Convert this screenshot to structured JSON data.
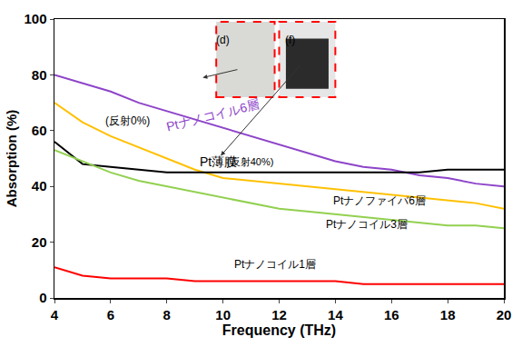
{
  "chart_data": {
    "type": "line",
    "xlabel": "Frequency (THz)",
    "ylabel": "Absorption (%)",
    "x": [
      4,
      5,
      6,
      7,
      8,
      9,
      10,
      11,
      12,
      13,
      14,
      15,
      16,
      17,
      18,
      19,
      20
    ],
    "xlim": [
      4,
      20
    ],
    "xticks": [
      4,
      6,
      8,
      10,
      12,
      14,
      16,
      18,
      20
    ],
    "ylim": [
      0,
      100
    ],
    "yticks": [
      0,
      20,
      40,
      60,
      80,
      100
    ],
    "grid": false,
    "series": [
      {
        "name": "Ptナノコイル6層",
        "color": "#8e44c9",
        "values": [
          80,
          77,
          74,
          70,
          67,
          64,
          61,
          58,
          55,
          52,
          49,
          47,
          46,
          44,
          43,
          41,
          40
        ]
      },
      {
        "name": "Ptナノファイバ6層",
        "color": "#ffc000",
        "values": [
          70,
          63,
          58,
          54,
          50,
          46,
          43,
          42,
          41,
          40,
          39,
          38,
          37,
          36,
          35,
          34,
          32
        ]
      },
      {
        "name": "Pt薄膜",
        "color": "#000000",
        "values": [
          56,
          48,
          47,
          46,
          45,
          45,
          45,
          45,
          45,
          45,
          45,
          45,
          45,
          45,
          46,
          46,
          46
        ]
      },
      {
        "name": "Ptナノコイル3層",
        "color": "#92d050",
        "values": [
          53,
          49,
          45,
          42,
          40,
          38,
          36,
          34,
          32,
          31,
          30,
          29,
          28,
          27,
          26,
          26,
          25
        ]
      },
      {
        "name": "Ptナノコイル1層",
        "color": "#ff0000",
        "values": [
          11,
          8,
          7,
          7,
          7,
          6,
          6,
          6,
          6,
          6,
          6,
          5,
          5,
          5,
          5,
          5,
          5
        ]
      }
    ],
    "annotations": [
      "(反射0%)",
      "(反射40%)",
      "(d)",
      "(f)"
    ]
  }
}
